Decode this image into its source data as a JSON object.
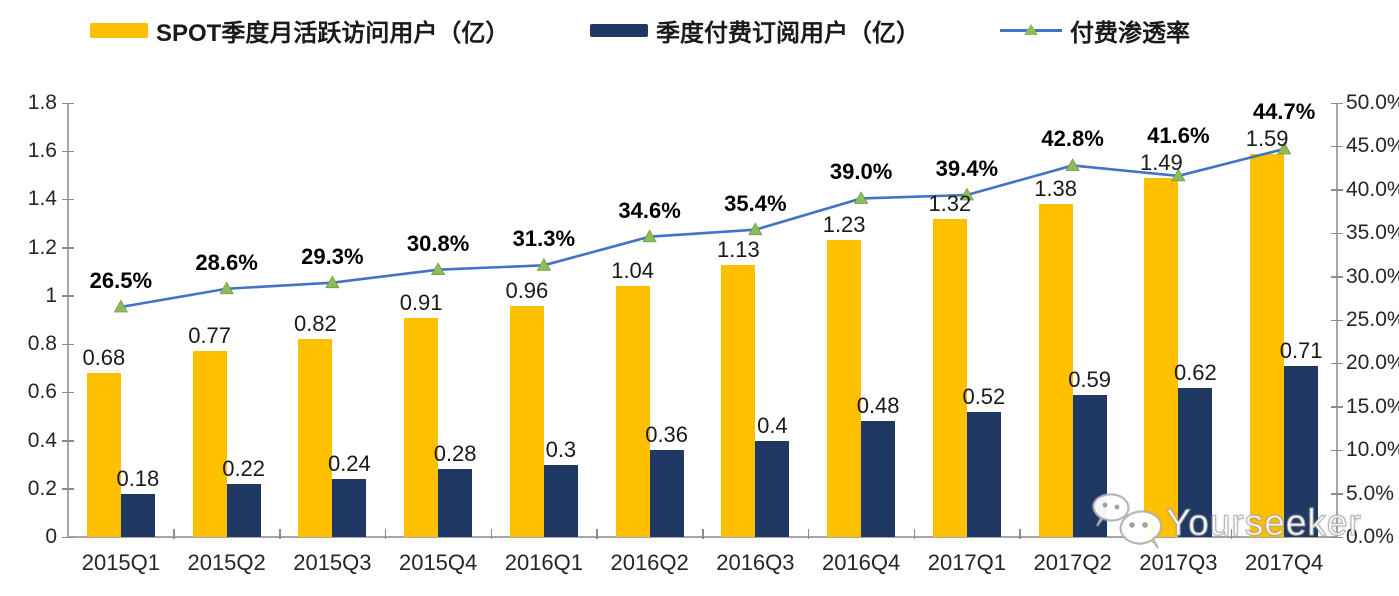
{
  "legend": {
    "items": [
      {
        "type": "bar",
        "color": "#FFC000"
      },
      {
        "type": "bar",
        "color": "#1F3864"
      },
      {
        "type": "line",
        "color": "#4472C4",
        "marker_color": "#8FBC5B"
      }
    ]
  },
  "chart_data": {
    "type": "bar+line combo",
    "categories": [
      "2015Q1",
      "2015Q2",
      "2015Q3",
      "2015Q4",
      "2016Q1",
      "2016Q2",
      "2016Q3",
      "2016Q4",
      "2017Q1",
      "2017Q2",
      "2017Q3",
      "2017Q4"
    ],
    "series": [
      {
        "name": "SPOT季度月活跃访问用户（亿）",
        "type": "bar",
        "axis": "left",
        "color": "#FFC000",
        "values": [
          0.68,
          0.77,
          0.82,
          0.91,
          0.96,
          1.04,
          1.13,
          1.23,
          1.32,
          1.38,
          1.49,
          1.59
        ],
        "labels": [
          "0.68",
          "0.77",
          "0.82",
          "0.91",
          "0.96",
          "1.04",
          "1.13",
          "1.23",
          "1.32",
          "1.38",
          "1.49",
          "1.59"
        ]
      },
      {
        "name": "季度付费订阅用户（亿）",
        "type": "bar",
        "axis": "left",
        "color": "#1F3864",
        "values": [
          0.18,
          0.22,
          0.24,
          0.28,
          0.3,
          0.36,
          0.4,
          0.48,
          0.52,
          0.59,
          0.62,
          0.71
        ],
        "labels": [
          "0.18",
          "0.22",
          "0.24",
          "0.28",
          "0.3",
          "0.36",
          "0.4",
          "0.48",
          "0.52",
          "0.59",
          "0.62",
          "0.71"
        ]
      },
      {
        "name": "付费渗透率",
        "type": "line",
        "axis": "right",
        "color": "#4472C4",
        "marker": "triangle-up",
        "marker_color": "#8FBC5B",
        "values": [
          26.5,
          28.6,
          29.3,
          30.8,
          31.3,
          34.6,
          35.4,
          39.0,
          39.4,
          42.8,
          41.6,
          44.7
        ],
        "labels": [
          "26.5%",
          "28.6%",
          "29.3%",
          "30.8%",
          "31.3%",
          "34.6%",
          "35.4%",
          "39.0%",
          "39.4%",
          "42.8%",
          "41.6%",
          "44.7%"
        ]
      }
    ],
    "left_axis": {
      "min": 0,
      "max": 1.8,
      "step": 0.2,
      "tick_labels": [
        "1.8",
        "1.6",
        "1.4",
        "1.2",
        "1",
        "0.8",
        "0.6",
        "0.4",
        "0.2",
        "0"
      ]
    },
    "right_axis": {
      "min": 0,
      "max": 50,
      "step": 5,
      "tick_labels": [
        "50.0%",
        "45.0%",
        "40.0%",
        "35.0%",
        "30.0%",
        "25.0%",
        "20.0%",
        "15.0%",
        "10.0%",
        "5.0%",
        "0.0%"
      ]
    },
    "grid": "off",
    "legend_position": "top"
  },
  "watermark": {
    "text": "Yourseeker",
    "icon": "wechat-icon"
  }
}
